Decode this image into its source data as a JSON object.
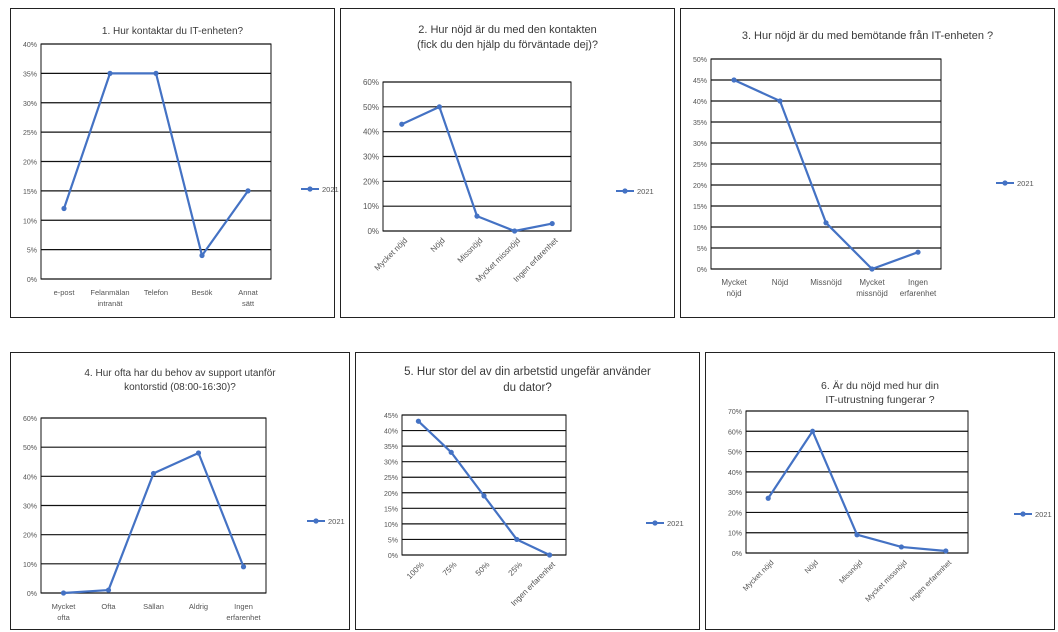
{
  "chart_data": [
    {
      "type": "line",
      "title": "1. Hur kontaktar du IT-enheten?",
      "categories": [
        "e-post",
        "Felanmälan intranät",
        "Telefon",
        "Besök",
        "Annat sätt"
      ],
      "series": [
        {
          "name": "2021",
          "values": [
            12,
            35,
            35,
            4,
            15
          ]
        }
      ],
      "yticks": [
        "0%",
        "5%",
        "10%",
        "15%",
        "20%",
        "25%",
        "30%",
        "35%",
        "40%"
      ],
      "ylim": [
        0,
        40
      ],
      "legend": "right",
      "line_color": "#4472c4"
    },
    {
      "type": "line",
      "title": "2. Hur nöjd är du med den kontakten (fick du den hjälp du förväntade dej)?",
      "categories": [
        "Mycket nöjd",
        "Nöjd",
        "Missnöjd",
        "Mycket missnöjd",
        "Ingen erfarenhet"
      ],
      "series": [
        {
          "name": "2021",
          "values": [
            43,
            50,
            6,
            0,
            3
          ]
        }
      ],
      "yticks": [
        "0%",
        "10%",
        "20%",
        "30%",
        "40%",
        "50%",
        "60%"
      ],
      "ylim": [
        0,
        60
      ],
      "legend": "right",
      "line_color": "#4472c4"
    },
    {
      "type": "line",
      "title": "3. Hur nöjd är du med bemötande från IT-enheten ?",
      "categories": [
        "Mycket nöjd",
        "Nöjd",
        "Missnöjd",
        "Mycket missnöjd",
        "Ingen erfarenhet"
      ],
      "series": [
        {
          "name": "2021",
          "values": [
            45,
            40,
            11,
            0,
            4
          ]
        }
      ],
      "yticks": [
        "0%",
        "5%",
        "10%",
        "15%",
        "20%",
        "25%",
        "30%",
        "35%",
        "40%",
        "45%",
        "50%"
      ],
      "ylim": [
        0,
        50
      ],
      "legend": "right",
      "line_color": "#4472c4"
    },
    {
      "type": "line",
      "title": "4. Hur ofta har du behov av support utanför kontorstid (08:00-16:30)?",
      "categories": [
        "Mycket ofta",
        "Ofta",
        "Sällan",
        "Aldrig",
        "Ingen erfarenhet"
      ],
      "series": [
        {
          "name": "2021",
          "values": [
            0,
            1,
            41,
            48,
            9
          ]
        }
      ],
      "yticks": [
        "0%",
        "10%",
        "20%",
        "30%",
        "40%",
        "50%",
        "60%"
      ],
      "ylim": [
        0,
        60
      ],
      "legend": "right",
      "line_color": "#4472c4"
    },
    {
      "type": "line",
      "title": "5. Hur stor del av din arbetstid ungefär använder du dator?",
      "categories": [
        "100%",
        "75%",
        "50%",
        "25%",
        "Ingen erfarenhet"
      ],
      "series": [
        {
          "name": "2021",
          "values": [
            43,
            33,
            19,
            5,
            0
          ]
        }
      ],
      "yticks": [
        "0%",
        "5%",
        "10%",
        "15%",
        "20%",
        "25%",
        "30%",
        "35%",
        "40%",
        "45%"
      ],
      "ylim": [
        0,
        45
      ],
      "legend": "right",
      "line_color": "#4472c4"
    },
    {
      "type": "line",
      "title": "6. Är du nöjd med hur din IT-utrustning fungerar ?",
      "categories": [
        "Mycket nöjd",
        "Nöjd",
        "Missnöjd",
        "Mycket missnöjd",
        "Ingen erfarenhet"
      ],
      "series": [
        {
          "name": "2021",
          "values": [
            27,
            60,
            9,
            3,
            1
          ]
        }
      ],
      "yticks": [
        "0%",
        "10%",
        "20%",
        "30%",
        "40%",
        "50%",
        "60%",
        "70%"
      ],
      "ylim": [
        0,
        70
      ],
      "legend": "right",
      "line_color": "#4472c4"
    }
  ]
}
